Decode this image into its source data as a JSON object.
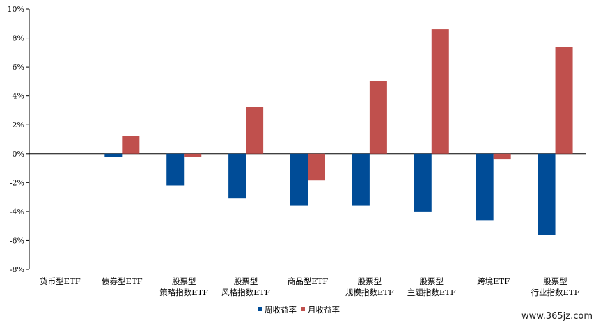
{
  "chart_data": {
    "type": "bar",
    "categories": [
      [
        "货币型ETF"
      ],
      [
        "债券型ETF"
      ],
      [
        "股票型",
        "策略指数ETF"
      ],
      [
        "股票型",
        "风格指数ETF"
      ],
      [
        "商品型ETF"
      ],
      [
        "股票型",
        "规模指数ETF"
      ],
      [
        "股票型",
        "主题指数ETF"
      ],
      [
        "跨境ETF"
      ],
      [
        "股票型",
        "行业指数ETF"
      ]
    ],
    "series": [
      {
        "name": "周收益率",
        "color": "#004C97",
        "values": [
          0.0,
          -0.25,
          -2.2,
          -3.1,
          -3.6,
          -3.6,
          -4.0,
          -4.6,
          -5.6
        ]
      },
      {
        "name": "月收益率",
        "color": "#C0504D",
        "values": [
          0.0,
          1.2,
          -0.25,
          3.25,
          -1.85,
          5.0,
          8.6,
          -0.4,
          7.4
        ]
      }
    ],
    "ylim": [
      -8,
      10
    ],
    "ytick_step": 2,
    "ytick_format": "%",
    "legend_position": "bottom",
    "grid": false,
    "title": "",
    "xlabel": "",
    "ylabel": ""
  },
  "watermark": "www.365jz.com"
}
